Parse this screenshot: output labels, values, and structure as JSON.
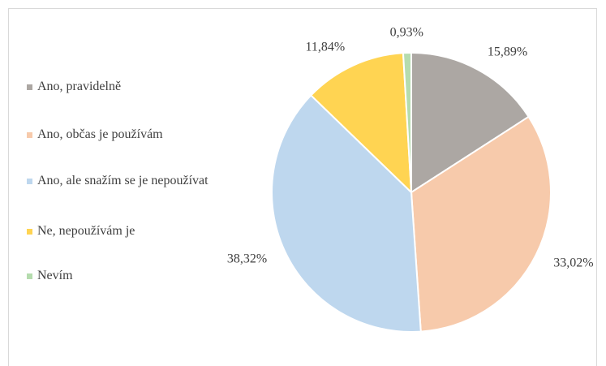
{
  "chart_data": {
    "type": "pie",
    "categories": [
      "Ano, pravidelně",
      "Ano, občas je používám",
      "Ano, ale snažím se je nepoužívat",
      "Ne, nepoužívám je",
      "Nevím"
    ],
    "values": [
      15.89,
      33.02,
      38.32,
      11.84,
      0.93
    ],
    "value_labels": [
      "15,89%",
      "33,02%",
      "38,32%",
      "11,84%",
      "0,93%"
    ],
    "colors": [
      "#aca7a3",
      "#f7caab",
      "#bed7ee",
      "#ffd452",
      "#b5dcae"
    ],
    "legend": "left"
  }
}
